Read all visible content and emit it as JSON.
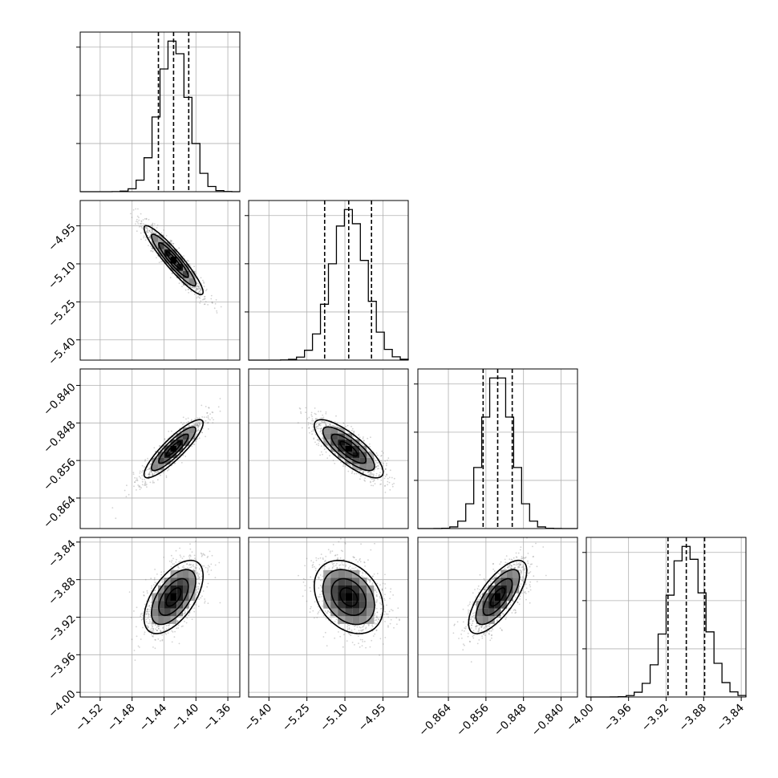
{
  "chart_data": {
    "type": "corner",
    "n_params": 4,
    "params": [
      {
        "index": 0,
        "mean": -1.428,
        "sd": 0.0185,
        "range": [
          -1.545,
          -1.345
        ],
        "ticks": [
          -1.52,
          -1.48,
          -1.44,
          -1.4,
          -1.36
        ],
        "tick_labels": [
          "−1.52",
          "−1.48",
          "−1.44",
          "−1.40",
          "−1.36"
        ],
        "quantiles": [
          -1.447,
          -1.428,
          -1.409
        ]
      },
      {
        "index": 1,
        "mean": -5.085,
        "sd": 0.068,
        "range": [
          -5.48,
          -4.85
        ],
        "ticks": [
          -5.4,
          -5.25,
          -5.1,
          -4.95
        ],
        "tick_labels": [
          "−5.40",
          "−5.25",
          "−5.10",
          "−4.95"
        ],
        "quantiles": [
          -5.18,
          -5.085,
          -4.995
        ]
      },
      {
        "index": 2,
        "mean": -0.8535,
        "sd": 0.0031,
        "range": [
          -0.8705,
          -0.8365
        ],
        "ticks": [
          -0.864,
          -0.856,
          -0.848,
          -0.84
        ],
        "tick_labels": [
          "−0.864",
          "−0.856",
          "−0.848",
          "−0.840"
        ],
        "quantiles": [
          -0.8566,
          -0.8535,
          -0.8504
        ]
      },
      {
        "index": 3,
        "mean": -3.8985,
        "sd": 0.0195,
        "range": [
          -4.005,
          -3.835
        ],
        "ticks": [
          -4.0,
          -3.96,
          -3.92,
          -3.88,
          -3.84
        ],
        "tick_labels": [
          "−4.00",
          "−3.96",
          "−3.92",
          "−3.88",
          "−3.84"
        ],
        "quantiles": [
          -3.918,
          -3.8985,
          -3.879
        ]
      }
    ],
    "correlations": [
      {
        "pair": [
          1,
          0
        ],
        "rho": -0.93
      },
      {
        "pair": [
          2,
          0
        ],
        "rho": 0.88
      },
      {
        "pair": [
          2,
          1
        ],
        "rho": -0.8
      },
      {
        "pair": [
          3,
          0
        ],
        "rho": 0.58
      },
      {
        "pair": [
          3,
          1
        ],
        "rho": -0.3
      },
      {
        "pair": [
          3,
          2
        ],
        "rho": 0.72
      }
    ],
    "histogram_bins": 20,
    "grid": true,
    "contour_levels_sigma": [
      0.5,
      1.0,
      1.5,
      2.0
    ],
    "colors": {
      "points": "#7f7f7f",
      "lines": "#000000",
      "grid": "#b0b0b0"
    }
  }
}
